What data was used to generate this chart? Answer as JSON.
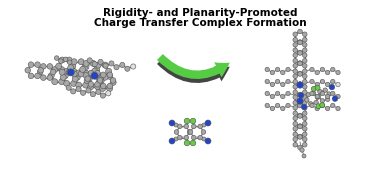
{
  "title_line1": "Rigidity- and Planarity-Promoted",
  "title_line2": "Charge Transfer Complex Formation",
  "title_fontsize": 7.5,
  "title_fontweight": "bold",
  "bg_color": "#ffffff",
  "arrow_green": "#55cc44",
  "arrow_dark": "#444444",
  "gray": "#a8a8a8",
  "dark_gray": "#707070",
  "blue": "#2244cc",
  "green_f": "#66cc44",
  "white_h": "#e0e0e0",
  "bond": "#808080"
}
